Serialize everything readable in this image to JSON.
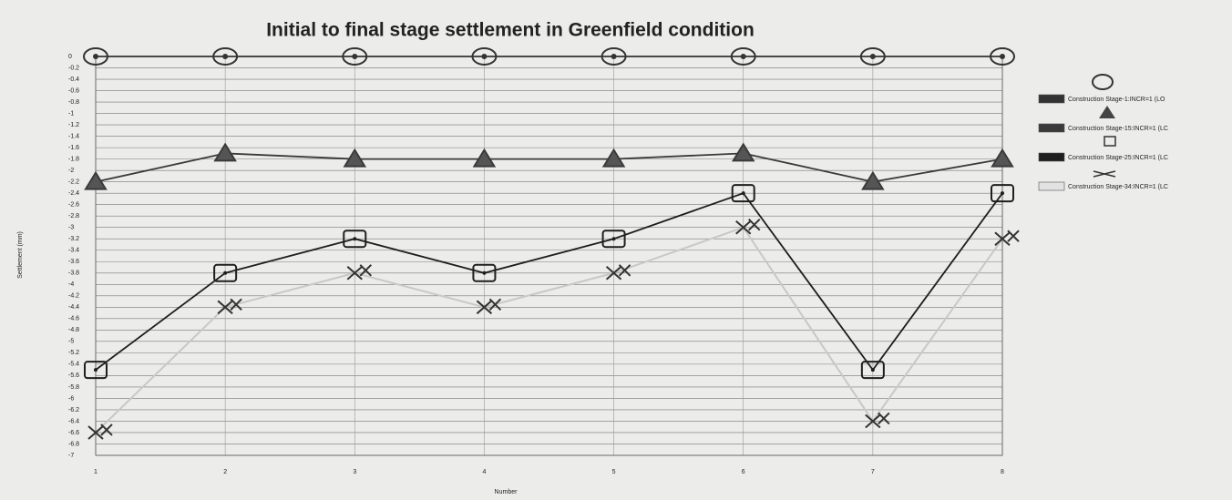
{
  "chart_data": {
    "type": "line",
    "title": "Initial to final stage settlement in Greenfield condition",
    "x_label": "Number",
    "y_label": "Settlement (mm)",
    "x": [
      1,
      2,
      3,
      4,
      5,
      6,
      7,
      8
    ],
    "xlim": [
      1,
      8
    ],
    "xticks": [
      1,
      2,
      3,
      4,
      5,
      6,
      7,
      8
    ],
    "ylim": [
      -7,
      0
    ],
    "yticks": [
      0,
      -0.2,
      -0.4,
      -0.6,
      -0.8,
      -1,
      -1.2,
      -1.4,
      -1.6,
      -1.8,
      -2,
      -2.2,
      -2.4,
      -2.6,
      -2.8,
      -3,
      -3.2,
      -3.4,
      -3.6,
      -3.8,
      -4,
      -4.2,
      -4.4,
      -4.6,
      -4.8,
      -5,
      -5.2,
      -5.4,
      -5.6,
      -5.8,
      -6,
      -6.2,
      -6.4,
      -6.6,
      -6.8,
      -7
    ],
    "grid": true,
    "legend": "right",
    "series": [
      {
        "name": "Construction Stage-1:INCR=1 (LO",
        "color": "#333333",
        "marker": "circle",
        "values": [
          0,
          0,
          0,
          0,
          0,
          0,
          0,
          0
        ]
      },
      {
        "name": "Construction Stage-15:INCR=1 (LC",
        "color": "#3a3a3a",
        "marker": "triangle",
        "values": [
          -2.2,
          -1.7,
          -1.8,
          -1.8,
          -1.8,
          -1.7,
          -2.2,
          -1.8
        ]
      },
      {
        "name": "Construction Stage-25:INCR=1 (LC",
        "color": "#1e1e1e",
        "marker": "square",
        "values": [
          -5.5,
          -3.8,
          -3.2,
          -3.8,
          -3.2,
          -2.4,
          -5.5,
          -2.4
        ]
      },
      {
        "name": "Construction Stage-34:INCR=1 (LC",
        "color": "#c8c8c8",
        "marker": "cross",
        "values": [
          -6.6,
          -4.4,
          -3.8,
          -4.4,
          -3.8,
          -3,
          -6.4,
          -3.2
        ]
      }
    ]
  }
}
